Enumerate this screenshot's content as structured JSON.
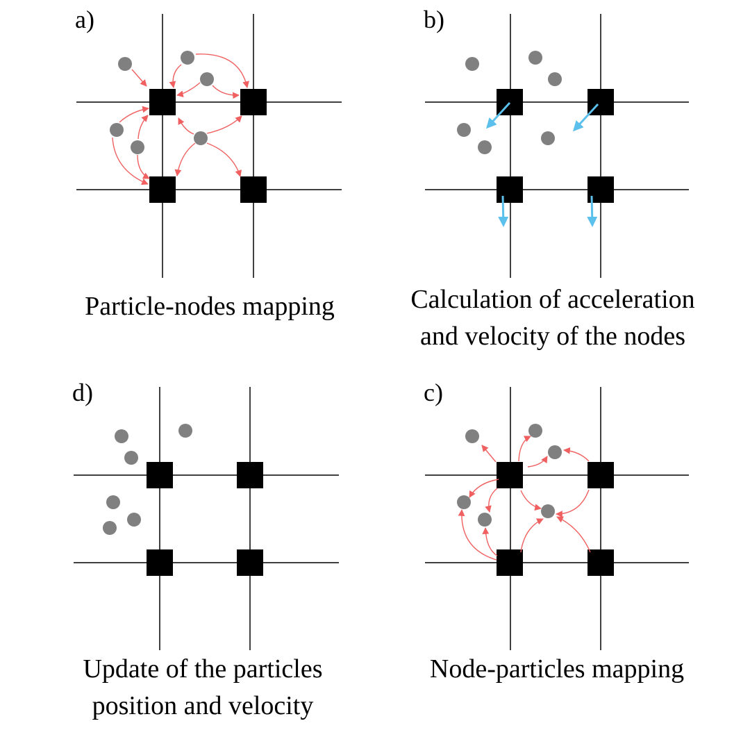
{
  "panels": {
    "a": {
      "label": "a)",
      "caption": [
        "Particle-nodes mapping"
      ]
    },
    "b": {
      "label": "b)",
      "caption": [
        "Calculation of acceleration",
        "and velocity of the nodes"
      ]
    },
    "c": {
      "label": "c)",
      "caption": [
        "Node-particles mapping"
      ]
    },
    "d": {
      "label": "d)",
      "caption": [
        "Update of the particles",
        "position and velocity"
      ]
    }
  },
  "colors": {
    "grid": "#000000",
    "node": "#000000",
    "particle": "#808080",
    "mapping_arrow": "#f06060",
    "velocity_arrow": "#5bc0eb",
    "background": "#ffffff"
  },
  "legend_icons": [
    "node-icon",
    "particle-icon",
    "mapping-arrow-icon",
    "velocity-arrow-icon"
  ]
}
